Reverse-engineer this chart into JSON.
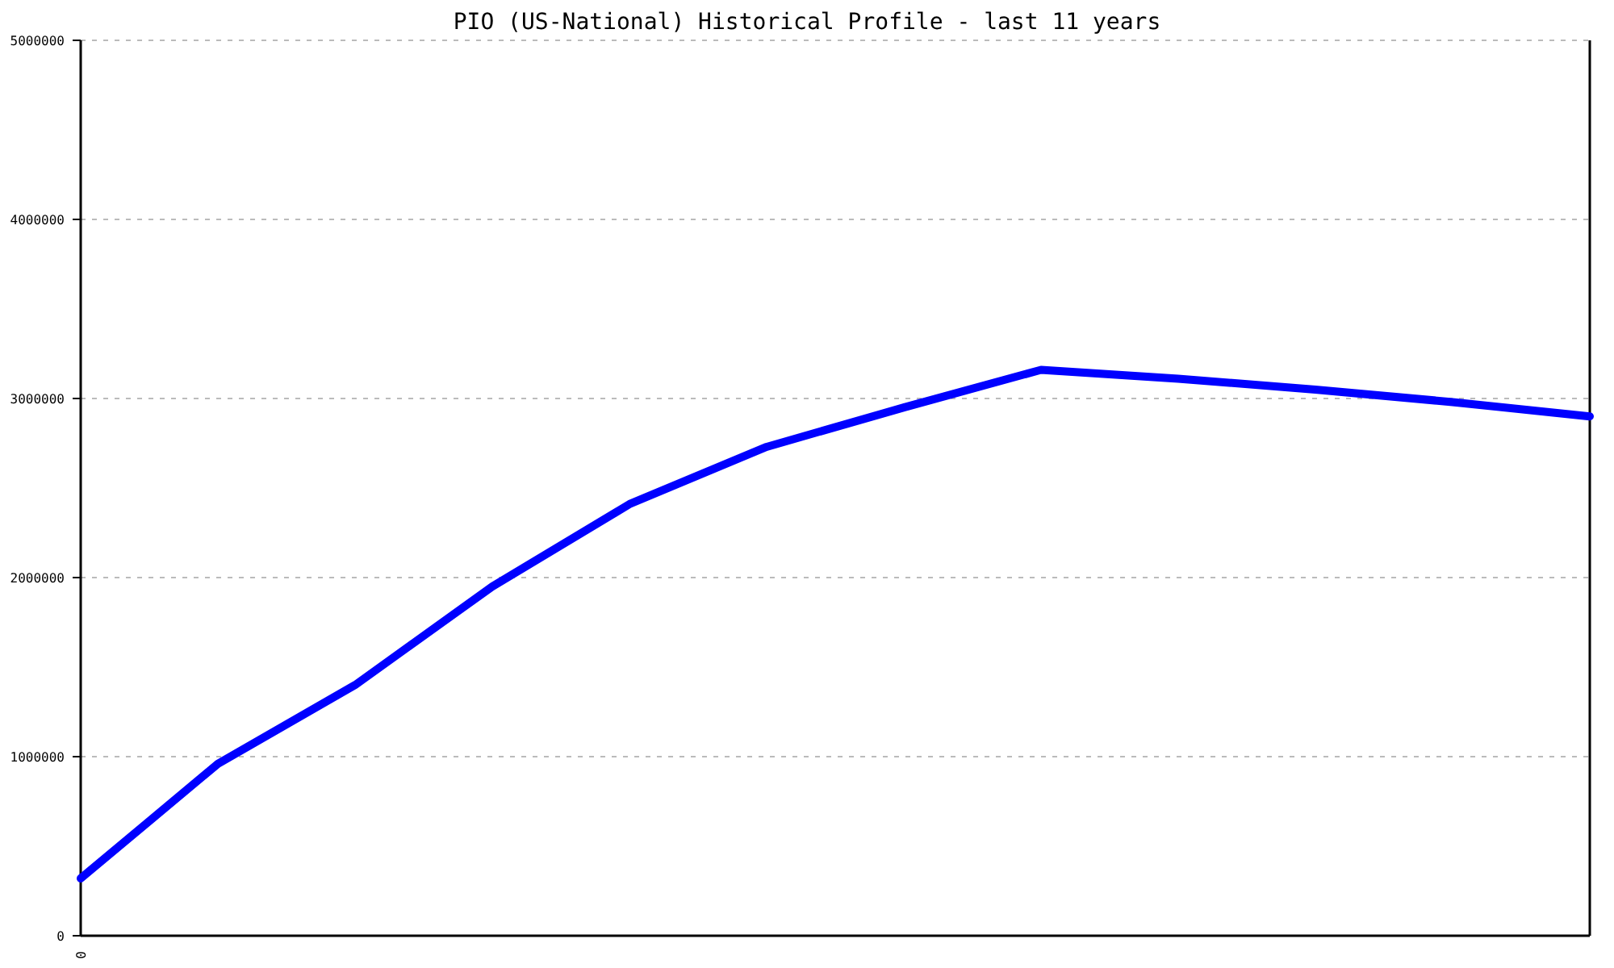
{
  "chart_data": {
    "type": "line",
    "title": "PIO (US-National) Historical Profile - last 11 years",
    "categories": [
      "0",
      null,
      null,
      null,
      null,
      null,
      null,
      null,
      null,
      null,
      null,
      null
    ],
    "series": [
      {
        "color": "#0000ff",
        "values": [
          320000,
          960000,
          1400000,
          1950000,
          2410000,
          2730000,
          2950000,
          3160000,
          3110000,
          3050000,
          2980000,
          2900000
        ]
      }
    ],
    "ylim": [
      0,
      5000000
    ],
    "yticks": [
      0,
      1000000,
      2000000,
      3000000,
      4000000,
      5000000
    ],
    "grid": "y",
    "marker": "none",
    "line_style": "solid"
  }
}
